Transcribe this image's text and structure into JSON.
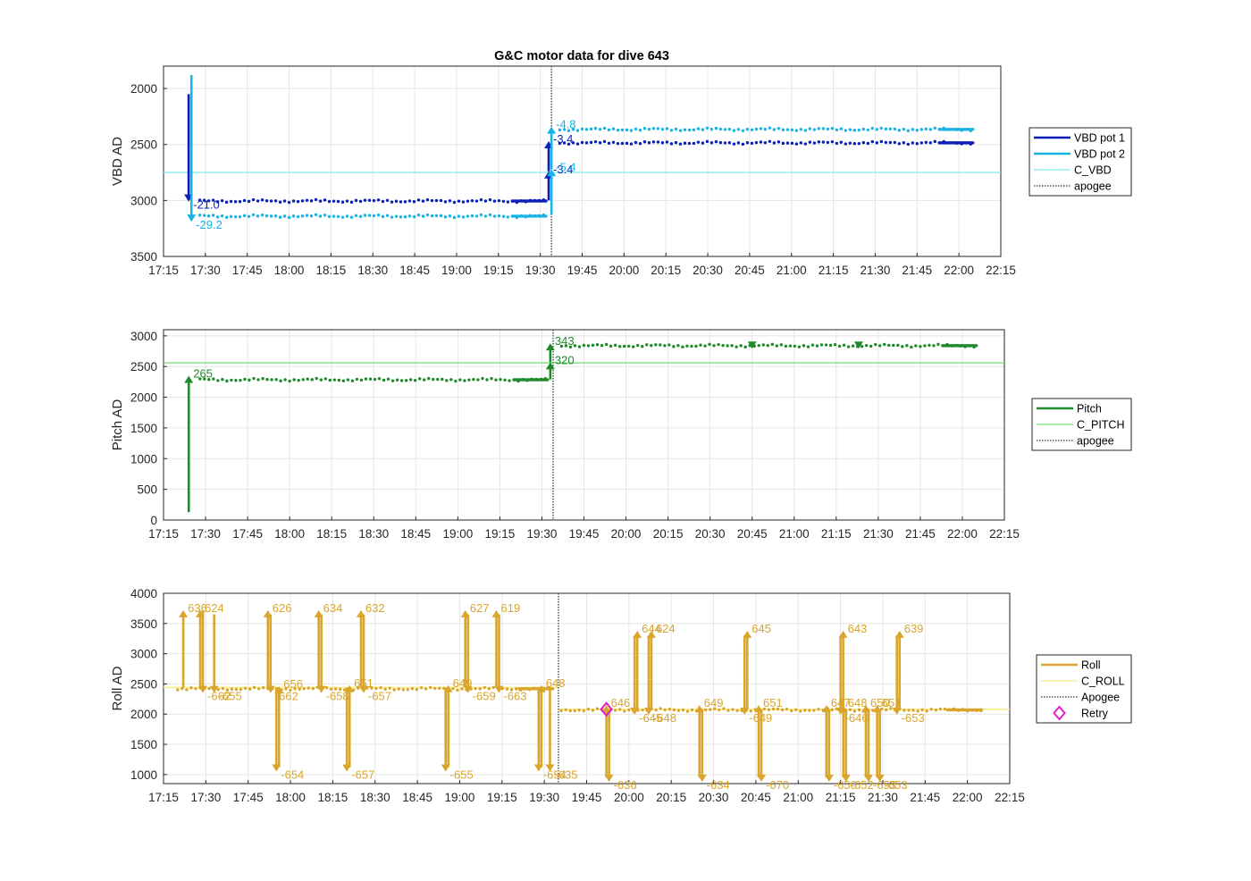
{
  "title": "G&C motor data for dive 643",
  "x_tick_labels": [
    "17:15",
    "17:30",
    "17:45",
    "18:00",
    "18:15",
    "18:30",
    "18:45",
    "19:00",
    "19:15",
    "19:30",
    "19:45",
    "20:00",
    "20:15",
    "20:30",
    "20:45",
    "21:00",
    "21:15",
    "21:30",
    "21:45",
    "22:00",
    "22:15"
  ],
  "colors": {
    "vbd1": "#0a1fb8",
    "vbd2": "#18b4e6",
    "cvbd": "#7fe8e8",
    "pitch": "#1f8a2a",
    "cpitch": "#6fe06f",
    "roll": "#d9a52b",
    "croll": "#f5ee8a",
    "apogee": "#555555",
    "retry": "#e020c8"
  },
  "chart_data": [
    {
      "type": "line",
      "name": "vbd",
      "title": "G&C motor data for dive 643",
      "ylabel": "VBD AD",
      "xlim": [
        "17:15",
        "22:15"
      ],
      "ylim": [
        3500,
        1800
      ],
      "y_reversed": true,
      "y_ticks": [
        2000,
        2500,
        3000,
        3500
      ],
      "grid": true,
      "legend_position": "outside-right",
      "legend": [
        {
          "label": "VBD pot 1",
          "style": "thick",
          "color": "#0a1fb8"
        },
        {
          "label": "VBD pot 2",
          "style": "thick",
          "color": "#18b4e6"
        },
        {
          "label": "C_VBD",
          "style": "thin",
          "color": "#7fe8e8"
        },
        {
          "label": "apogee",
          "style": "dotted",
          "color": "#555555"
        }
      ],
      "reference_lines": [
        {
          "name": "C_VBD",
          "y": 2750
        }
      ],
      "apogee_time": "19:34",
      "moves": [
        {
          "series": "VBD pot 1",
          "t": "17:24",
          "y_start": 2050,
          "y_end": 3010,
          "label": "-21.0"
        },
        {
          "series": "VBD pot 2",
          "t": "17:25",
          "y_start": 1880,
          "y_end": 3190,
          "label": "-29.2"
        },
        {
          "series": "VBD pot 1",
          "t": "19:33",
          "y_start": 3000,
          "y_end": 2740,
          "label": "-3.4"
        },
        {
          "series": "VBD pot 1",
          "t": "19:33",
          "y_start": 2740,
          "y_end": 2470,
          "label": "-3.4"
        },
        {
          "series": "VBD pot 2",
          "t": "19:34",
          "y_start": 3130,
          "y_end": 2720,
          "label": "-5.4"
        },
        {
          "series": "VBD pot 2",
          "t": "19:34",
          "y_start": 2720,
          "y_end": 2340,
          "label": "-4.8"
        }
      ],
      "series_samples": [
        {
          "name": "VBD pot 1",
          "segments": [
            {
              "t_start": "17:28",
              "t_end": "19:32",
              "y": 3005
            },
            {
              "t_start": "19:37",
              "t_end": "22:05",
              "y": 2485
            }
          ]
        },
        {
          "name": "VBD pot 2",
          "segments": [
            {
              "t_start": "17:28",
              "t_end": "19:32",
              "y": 3140
            },
            {
              "t_start": "19:37",
              "t_end": "22:05",
              "y": 2365
            }
          ]
        }
      ]
    },
    {
      "type": "line",
      "name": "pitch",
      "ylabel": "Pitch AD",
      "xlim": [
        "17:15",
        "22:15"
      ],
      "ylim": [
        0,
        3100
      ],
      "y_ticks": [
        0,
        500,
        1000,
        1500,
        2000,
        2500,
        3000
      ],
      "grid": true,
      "legend_position": "outside-right",
      "legend": [
        {
          "label": "Pitch",
          "style": "thick",
          "color": "#1f8a2a"
        },
        {
          "label": "C_PITCH",
          "style": "thin",
          "color": "#6fe06f"
        },
        {
          "label": "apogee",
          "style": "dotted",
          "color": "#555555"
        }
      ],
      "reference_lines": [
        {
          "name": "C_PITCH",
          "y": 2560
        }
      ],
      "apogee_time": "19:34",
      "moves": [
        {
          "t": "17:24",
          "y_start": 130,
          "y_end": 2350,
          "label": "265"
        },
        {
          "t": "19:33",
          "y_start": 2290,
          "y_end": 2570,
          "label": "320"
        },
        {
          "t": "19:33",
          "y_start": 2570,
          "y_end": 2880,
          "label": "343"
        },
        {
          "t": "20:45",
          "y_start": 2870,
          "y_end": 2790,
          "label": ""
        },
        {
          "t": "21:23",
          "y_start": 2870,
          "y_end": 2790,
          "label": ""
        }
      ],
      "series_samples": [
        {
          "name": "Pitch",
          "segments": [
            {
              "t_start": "17:28",
              "t_end": "19:32",
              "y": 2285
            },
            {
              "t_start": "19:37",
              "t_end": "22:05",
              "y": 2840
            }
          ]
        }
      ]
    },
    {
      "type": "line",
      "name": "roll",
      "ylabel": "Roll AD",
      "xlim": [
        "17:15",
        "22:15"
      ],
      "ylim": [
        850,
        4000
      ],
      "y_ticks": [
        1000,
        1500,
        2000,
        2500,
        3000,
        3500,
        4000
      ],
      "grid": true,
      "legend_position": "outside-right",
      "legend": [
        {
          "label": "Roll",
          "style": "thick",
          "color": "#d9a52b"
        },
        {
          "label": "C_ROLL",
          "style": "thin",
          "color": "#f5ee8a"
        },
        {
          "label": "Apogee",
          "style": "dotted",
          "color": "#555555"
        },
        {
          "label": "Retry",
          "style": "diamond",
          "color": "#e020c8"
        }
      ],
      "reference_lines": [
        {
          "name": "C_ROLL",
          "y_before_apogee": 2440,
          "y_after_apogee": 2080
        }
      ],
      "apogee_time": "19:35",
      "retry_points": [
        {
          "t": "19:52",
          "y": 2080
        }
      ],
      "moves": [
        {
          "t": "17:22",
          "y_start": 2440,
          "y_end": 3720,
          "label": "636"
        },
        {
          "t": "17:28",
          "y_start": 3720,
          "y_end": 2350,
          "label": "-662"
        },
        {
          "t": "17:28",
          "y_start": 2420,
          "y_end": 3720,
          "label": "624"
        },
        {
          "t": "17:32",
          "y_start": 3650,
          "y_end": 2350,
          "label": "-655"
        },
        {
          "t": "17:52",
          "y_start": 2440,
          "y_end": 3720,
          "label": "626"
        },
        {
          "t": "17:52",
          "y_start": 3650,
          "y_end": 2350,
          "label": "-662"
        },
        {
          "t": "17:55",
          "y_start": 2440,
          "y_end": 1050,
          "label": "-654"
        },
        {
          "t": "17:55",
          "y_start": 1120,
          "y_end": 2460,
          "label": "656"
        },
        {
          "t": "18:10",
          "y_start": 2440,
          "y_end": 3720,
          "label": "634"
        },
        {
          "t": "18:10",
          "y_start": 3650,
          "y_end": 2350,
          "label": "-658"
        },
        {
          "t": "18:20",
          "y_start": 2440,
          "y_end": 1050,
          "label": "-657"
        },
        {
          "t": "18:20",
          "y_start": 1120,
          "y_end": 2480,
          "label": "651"
        },
        {
          "t": "18:25",
          "y_start": 2440,
          "y_end": 3720,
          "label": "632"
        },
        {
          "t": "18:25",
          "y_start": 3650,
          "y_end": 2350,
          "label": "-657"
        },
        {
          "t": "18:55",
          "y_start": 2440,
          "y_end": 1050,
          "label": "-655"
        },
        {
          "t": "18:55",
          "y_start": 1120,
          "y_end": 2480,
          "label": "649"
        },
        {
          "t": "19:02",
          "y_start": 2440,
          "y_end": 3720,
          "label": "627"
        },
        {
          "t": "19:02",
          "y_start": 3650,
          "y_end": 2350,
          "label": "-659"
        },
        {
          "t": "19:13",
          "y_start": 2440,
          "y_end": 3720,
          "label": "619"
        },
        {
          "t": "19:13",
          "y_start": 3650,
          "y_end": 2350,
          "label": "-663"
        },
        {
          "t": "19:28",
          "y_start": 2440,
          "y_end": 1050,
          "label": "-654"
        },
        {
          "t": "19:28",
          "y_start": 1120,
          "y_end": 2480,
          "label": "648"
        },
        {
          "t": "19:32",
          "y_start": 2440,
          "y_end": 1050,
          "label": "-635"
        },
        {
          "t": "19:52",
          "y_start": 2080,
          "y_end": 880,
          "label": "-636"
        },
        {
          "t": "19:52",
          "y_start": 950,
          "y_end": 2150,
          "label": "646"
        },
        {
          "t": "20:02",
          "y_start": 2080,
          "y_end": 3380,
          "label": "644"
        },
        {
          "t": "20:02",
          "y_start": 3300,
          "y_end": 1990,
          "label": "-645"
        },
        {
          "t": "20:07",
          "y_start": 2080,
          "y_end": 3380,
          "label": "624"
        },
        {
          "t": "20:07",
          "y_start": 3300,
          "y_end": 1990,
          "label": "-648"
        },
        {
          "t": "20:25",
          "y_start": 2080,
          "y_end": 880,
          "label": "-634"
        },
        {
          "t": "20:25",
          "y_start": 950,
          "y_end": 2150,
          "label": "649"
        },
        {
          "t": "20:41",
          "y_start": 2080,
          "y_end": 3380,
          "label": "645"
        },
        {
          "t": "20:41",
          "y_start": 3300,
          "y_end": 1990,
          "label": "-649"
        },
        {
          "t": "20:46",
          "y_start": 2080,
          "y_end": 880,
          "label": "-670"
        },
        {
          "t": "20:46",
          "y_start": 950,
          "y_end": 2150,
          "label": "651"
        },
        {
          "t": "21:10",
          "y_start": 2080,
          "y_end": 880,
          "label": "-650"
        },
        {
          "t": "21:10",
          "y_start": 950,
          "y_end": 2150,
          "label": "647"
        },
        {
          "t": "21:15",
          "y_start": 2080,
          "y_end": 3380,
          "label": "643"
        },
        {
          "t": "21:15",
          "y_start": 3300,
          "y_end": 1990,
          "label": "-646"
        },
        {
          "t": "21:16",
          "y_start": 2080,
          "y_end": 880,
          "label": "-652"
        },
        {
          "t": "21:16",
          "y_start": 950,
          "y_end": 2150,
          "label": "648"
        },
        {
          "t": "21:24",
          "y_start": 2080,
          "y_end": 880,
          "label": "-653"
        },
        {
          "t": "21:24",
          "y_start": 950,
          "y_end": 2150,
          "label": "650"
        },
        {
          "t": "21:28",
          "y_start": 2080,
          "y_end": 880,
          "label": "-653"
        },
        {
          "t": "21:28",
          "y_start": 950,
          "y_end": 2150,
          "label": "651"
        },
        {
          "t": "21:35",
          "y_start": 2080,
          "y_end": 3380,
          "label": "639"
        },
        {
          "t": "21:35",
          "y_start": 3300,
          "y_end": 1990,
          "label": "-653"
        }
      ],
      "series_samples": [
        {
          "name": "Roll",
          "segments": [
            {
              "t_start": "17:20",
              "t_end": "19:33",
              "y": 2420
            },
            {
              "t_start": "19:36",
              "t_end": "22:05",
              "y": 2070
            }
          ]
        }
      ]
    }
  ]
}
